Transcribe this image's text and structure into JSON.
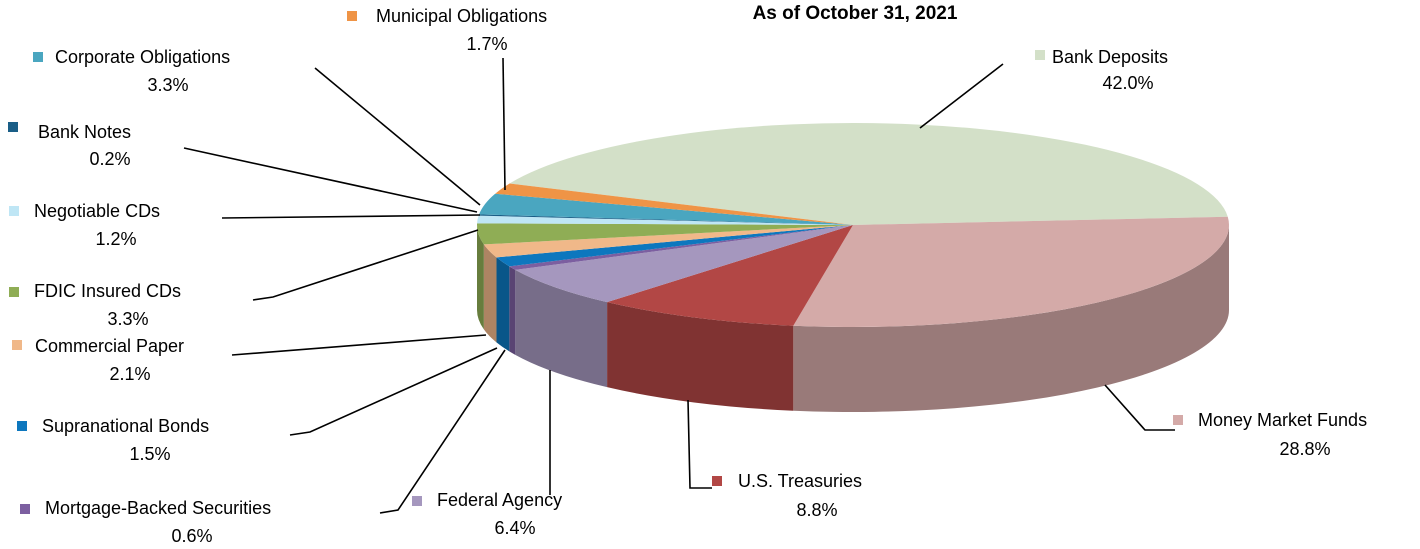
{
  "chart_data": {
    "type": "pie",
    "title": "As of October 31, 2021",
    "categories": [
      "Bank Deposits",
      "Money Market Funds",
      "U.S. Treasuries",
      "Federal Agency",
      "Mortgage-Backed Securities",
      "Supranational Bonds",
      "Commercial Paper",
      "FDIC Insured CDs",
      "Negotiable CDs",
      "Bank Notes",
      "Corporate Obligations",
      "Municipal Obligations"
    ],
    "values": [
      42.0,
      28.8,
      8.8,
      6.4,
      0.6,
      1.5,
      2.1,
      3.3,
      1.2,
      0.2,
      3.3,
      1.7
    ],
    "value_labels": [
      "42.0%",
      "28.8%",
      "8.8%",
      "6.4%",
      "0.6%",
      "1.5%",
      "2.1%",
      "3.3%",
      "1.2%",
      "0.2%",
      "3.3%",
      "1.7%"
    ],
    "colors": [
      "#d3e0c8",
      "#d4aaa8",
      "#b24745",
      "#a597be",
      "#7c5fa0",
      "#0d77be",
      "#f0b889",
      "#8fad55",
      "#bfe6f5",
      "#1a5e87",
      "#4aa6c0",
      "#ef9446"
    ]
  }
}
